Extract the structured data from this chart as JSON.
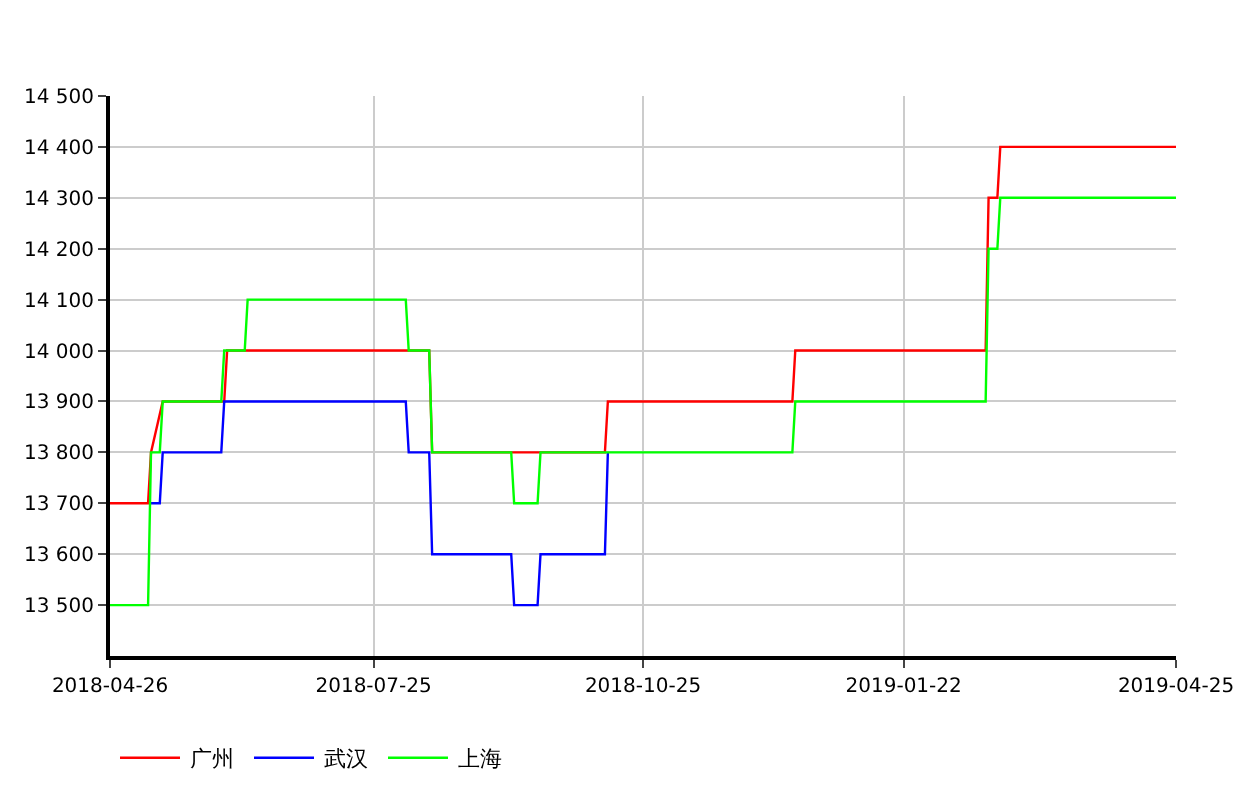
{
  "chart_data": {
    "type": "line",
    "series": [
      {
        "name": "广州",
        "color": "#ff0000",
        "x": [
          "2018-04-26",
          "2018-05-09",
          "2018-05-10",
          "2018-05-14",
          "2018-06-04",
          "2018-06-05",
          "2018-08-13",
          "2018-08-14",
          "2018-10-12",
          "2018-10-13",
          "2018-12-15",
          "2018-12-16",
          "2019-02-19",
          "2019-02-20",
          "2019-02-23",
          "2019-02-24",
          "2019-04-25"
        ],
        "values": [
          13700,
          13700,
          13800,
          13900,
          13900,
          14000,
          14000,
          13800,
          13800,
          13900,
          13900,
          14000,
          14000,
          14300,
          14300,
          14400,
          14400
        ]
      },
      {
        "name": "武汉",
        "color": "#0000ff",
        "x": [
          "2018-05-10",
          "2018-05-13",
          "2018-05-14",
          "2018-06-03",
          "2018-06-04",
          "2018-08-05",
          "2018-08-06",
          "2018-08-13",
          "2018-08-14",
          "2018-09-10",
          "2018-09-11",
          "2018-09-19",
          "2018-09-20",
          "2018-10-12",
          "2018-10-13"
        ],
        "values": [
          13700,
          13700,
          13800,
          13800,
          13900,
          13900,
          13800,
          13800,
          13600,
          13600,
          13500,
          13500,
          13600,
          13600,
          13800
        ]
      },
      {
        "name": "上海",
        "color": "#00ff00",
        "x": [
          "2018-04-26",
          "2018-05-09",
          "2018-05-10",
          "2018-05-13",
          "2018-05-14",
          "2018-06-03",
          "2018-06-04",
          "2018-06-11",
          "2018-06-12",
          "2018-08-05",
          "2018-08-06",
          "2018-08-13",
          "2018-08-14",
          "2018-09-10",
          "2018-09-11",
          "2018-09-19",
          "2018-09-20",
          "2018-12-15",
          "2018-12-16",
          "2019-02-19",
          "2019-02-20",
          "2019-02-23",
          "2019-02-24",
          "2019-04-25"
        ],
        "values": [
          13500,
          13500,
          13800,
          13800,
          13900,
          13900,
          14000,
          14000,
          14100,
          14100,
          14000,
          14000,
          13800,
          13800,
          13700,
          13700,
          13800,
          13800,
          13900,
          13900,
          14200,
          14200,
          14300,
          14300
        ]
      }
    ],
    "xlim": [
      "2018-04-26",
      "2019-04-25"
    ],
    "xticks": [
      "2018-04-26",
      "2018-07-25",
      "2018-10-25",
      "2019-01-22",
      "2019-04-25"
    ],
    "ylim": [
      13400,
      14500
    ],
    "yticks": [
      {
        "value": 13500,
        "label": "13 500"
      },
      {
        "value": 13600,
        "label": "13 600"
      },
      {
        "value": 13700,
        "label": "13 700"
      },
      {
        "value": 13800,
        "label": "13 800"
      },
      {
        "value": 13900,
        "label": "13 900"
      },
      {
        "value": 14000,
        "label": "14 000"
      },
      {
        "value": 14100,
        "label": "14 100"
      },
      {
        "value": 14200,
        "label": "14 200"
      },
      {
        "value": 14300,
        "label": "14 300"
      },
      {
        "value": 14400,
        "label": "14 400"
      },
      {
        "value": 14500,
        "label": "14 500"
      }
    ],
    "grid": true,
    "legend": "bottom left",
    "marker": "none",
    "line_style": "solid"
  }
}
